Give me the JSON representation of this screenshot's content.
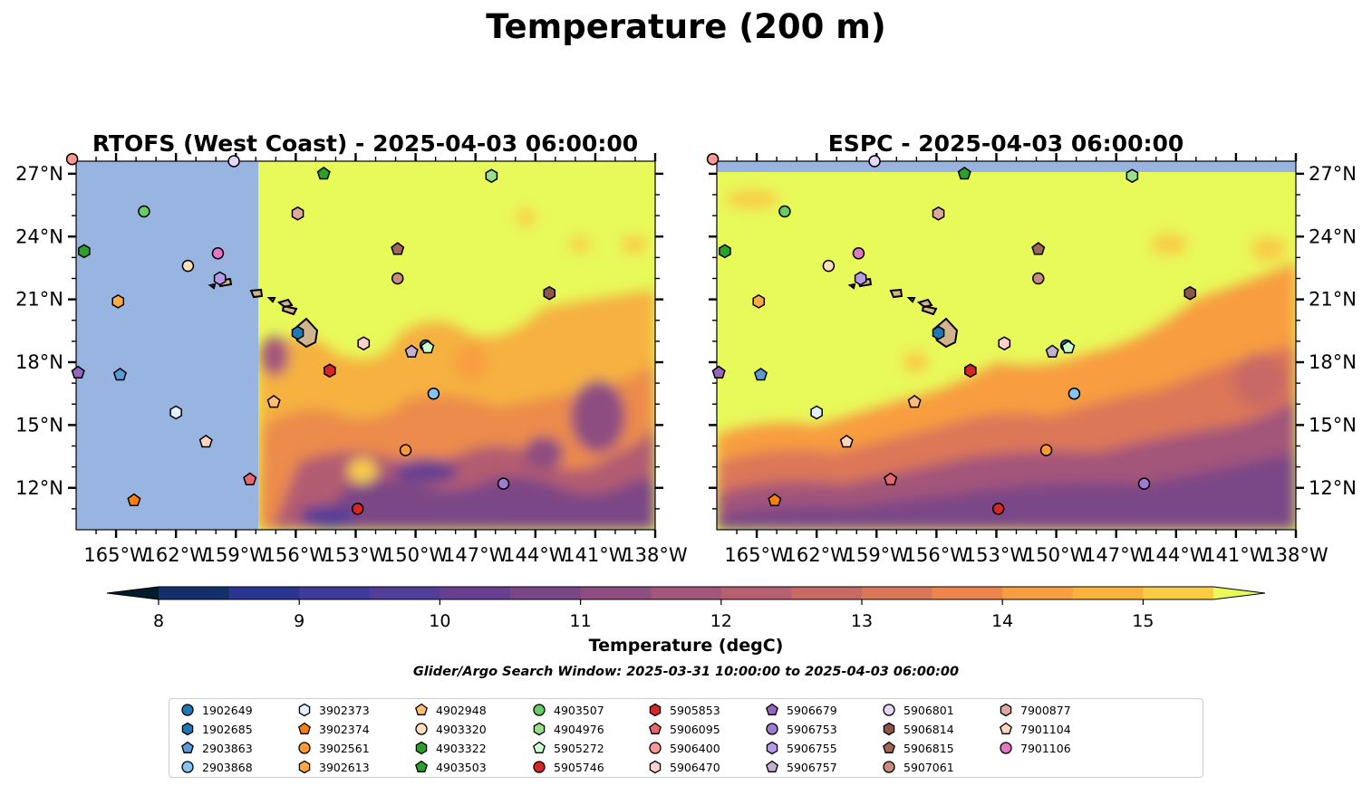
{
  "figure": {
    "suptitle": "Temperature (200 m)",
    "left_title": "RTOFS (West Coast) - 2025-04-03 06:00:00",
    "right_title": "ESPC - 2025-04-03 06:00:00",
    "colorbar_label": "Temperature (degC)",
    "search_window": "Glider/Argo Search Window: 2025-03-31 10:00:00 to 2025-04-03 06:00:00"
  },
  "chart_data": {
    "type": "heatmap",
    "panels": [
      {
        "name": "RTOFS (West Coast) - 2025-04-03 06:00:00",
        "lon_range": [
          -167,
          -138
        ],
        "lat_range": [
          10,
          27.6
        ],
        "note_land_mask_west_of": -157.5
      },
      {
        "name": "ESPC - 2025-04-03 06:00:00",
        "lon_range": [
          -167,
          -138
        ],
        "lat_range": [
          10,
          27.6
        ]
      }
    ],
    "x_ticks": [
      "165°W",
      "162°W",
      "159°W",
      "156°W",
      "153°W",
      "150°W",
      "147°W",
      "144°W",
      "141°W",
      "138°W"
    ],
    "x_tick_values": [
      -165,
      -162,
      -159,
      -156,
      -153,
      -150,
      -147,
      -144,
      -141,
      -138
    ],
    "y_ticks": [
      "27°N",
      "24°N",
      "21°N",
      "18°N",
      "15°N",
      "12°N"
    ],
    "y_tick_values": [
      27,
      24,
      21,
      18,
      15,
      12
    ],
    "colorbar": {
      "min": 8,
      "max": 15.5,
      "step": 0.5,
      "extend": "both",
      "tick_labels": [
        "8",
        "9",
        "10",
        "11",
        "12",
        "13",
        "14",
        "15"
      ],
      "tick_values": [
        8,
        9,
        10,
        11,
        12,
        13,
        14,
        15
      ],
      "colors": [
        "#04233c",
        "#13306b",
        "#2a3591",
        "#3e3b9d",
        "#523d98",
        "#683f91",
        "#7a4687",
        "#8e4d80",
        "#a3557a",
        "#b65f70",
        "#c96965",
        "#dc7758",
        "#ed854c",
        "#f89d41",
        "#fbb33d",
        "#f9cc46",
        "#eef055"
      ],
      "under_color": "#021b2c",
      "over_color": "#e8f95a"
    },
    "land_color": "#d2b48c",
    "mask_color": "#98b4e0",
    "floats": [
      {
        "id": "1902649",
        "marker": "o",
        "color": "#1f77b4",
        "lon": -149.5,
        "lat": 18.8
      },
      {
        "id": "1902685",
        "marker": "h",
        "color": "#1f77b4",
        "lon": -155.9,
        "lat": 19.4
      },
      {
        "id": "2903863",
        "marker": "p",
        "color": "#5b9bd5",
        "lon": -164.8,
        "lat": 17.4
      },
      {
        "id": "2903868",
        "marker": "o",
        "color": "#87c3f1",
        "lon": -149.1,
        "lat": 16.5
      },
      {
        "id": "3902373",
        "marker": "h",
        "color": "#e2f1ff",
        "lon": -162.0,
        "lat": 15.6
      },
      {
        "id": "3902374",
        "marker": "p",
        "color": "#ff7f0e",
        "lon": -164.1,
        "lat": 11.4
      },
      {
        "id": "3902561",
        "marker": "o",
        "color": "#ff9933",
        "lon": -150.5,
        "lat": 13.8
      },
      {
        "id": "3902613",
        "marker": "h",
        "color": "#ffaa44",
        "lon": -164.9,
        "lat": 20.9
      },
      {
        "id": "4902948",
        "marker": "p",
        "color": "#ffbb78",
        "lon": -157.1,
        "lat": 16.1
      },
      {
        "id": "4903320",
        "marker": "o",
        "color": "#ffe0bb",
        "lon": -161.4,
        "lat": 22.6
      },
      {
        "id": "4903322",
        "marker": "h",
        "color": "#2ca02c",
        "lon": -166.6,
        "lat": 23.3
      },
      {
        "id": "4903503",
        "marker": "p",
        "color": "#2ca02c",
        "lon": -154.6,
        "lat": 27.0
      },
      {
        "id": "4903507",
        "marker": "o",
        "color": "#66cc66",
        "lon": -163.6,
        "lat": 25.2
      },
      {
        "id": "4904976",
        "marker": "h",
        "color": "#98df8a",
        "lon": -146.2,
        "lat": 26.9
      },
      {
        "id": "5905272",
        "marker": "p",
        "color": "#ccffcc",
        "lon": -149.4,
        "lat": 18.7
      },
      {
        "id": "5905746",
        "marker": "o",
        "color": "#d62728",
        "lon": -152.9,
        "lat": 11.0
      },
      {
        "id": "5905853",
        "marker": "h",
        "color": "#d62728",
        "lon": -154.3,
        "lat": 17.6
      },
      {
        "id": "5906095",
        "marker": "p",
        "color": "#e8666e",
        "lon": -158.3,
        "lat": 12.4
      },
      {
        "id": "5906400",
        "marker": "o",
        "color": "#ff9896",
        "lon": -167.2,
        "lat": 27.7
      },
      {
        "id": "5906470",
        "marker": "h",
        "color": "#ffd0d0",
        "lon": -152.6,
        "lat": 18.9
      },
      {
        "id": "5906679",
        "marker": "p",
        "color": "#9467bd",
        "lon": -166.9,
        "lat": 17.5
      },
      {
        "id": "5906753",
        "marker": "o",
        "color": "#a07cd0",
        "lon": -145.6,
        "lat": 12.2
      },
      {
        "id": "5906755",
        "marker": "h",
        "color": "#b99ae6",
        "lon": -159.8,
        "lat": 22.0
      },
      {
        "id": "5906757",
        "marker": "p",
        "color": "#c5b0d5",
        "lon": -150.2,
        "lat": 18.5
      },
      {
        "id": "5906801",
        "marker": "o",
        "color": "#e6d6f7",
        "lon": -159.1,
        "lat": 27.6
      },
      {
        "id": "5906814",
        "marker": "h",
        "color": "#8c564b",
        "lon": -143.3,
        "lat": 21.3
      },
      {
        "id": "5906815",
        "marker": "p",
        "color": "#a0665a",
        "lon": -150.9,
        "lat": 23.4
      },
      {
        "id": "5907061",
        "marker": "o",
        "color": "#c98b7c",
        "lon": -150.9,
        "lat": 22.0
      },
      {
        "id": "7900877",
        "marker": "h",
        "color": "#e0a9a0",
        "lon": -155.9,
        "lat": 25.1
      },
      {
        "id": "7901104",
        "marker": "p",
        "color": "#ffd4c0",
        "lon": -160.5,
        "lat": 14.2
      },
      {
        "id": "7901106",
        "marker": "o",
        "color": "#e377c2",
        "lon": -159.9,
        "lat": 23.2
      }
    ]
  }
}
